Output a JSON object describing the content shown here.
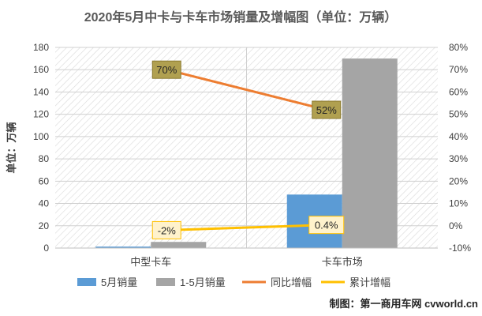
{
  "chart_data": {
    "type": "bar",
    "title": "2020年5月中卡与卡车市场销量及增幅图（单位：万辆）",
    "ylabel": "单位：万辆",
    "categories": [
      "中型卡车",
      "卡车市场"
    ],
    "ylim": [
      0,
      180
    ],
    "yticks": [
      0,
      20,
      40,
      60,
      80,
      100,
      120,
      140,
      160,
      180
    ],
    "y2lim": [
      -10,
      80
    ],
    "y2ticks": [
      "-10%",
      "0%",
      "10%",
      "20%",
      "30%",
      "40%",
      "50%",
      "60%",
      "70%",
      "80%"
    ],
    "y2tick_values": [
      -10,
      0,
      10,
      20,
      30,
      40,
      50,
      60,
      70,
      80
    ],
    "series": [
      {
        "name": "5月销量",
        "kind": "bar",
        "axis": "left",
        "color": "#5b9bd5",
        "values": [
          1.3,
          48
        ]
      },
      {
        "name": "1-5月销量",
        "kind": "bar",
        "axis": "left",
        "color": "#a5a5a5",
        "values": [
          5.5,
          170
        ]
      },
      {
        "name": "同比增幅",
        "kind": "line",
        "axis": "right",
        "color": "#ed7d31",
        "values": [
          70,
          52
        ],
        "labels": [
          "70%",
          "52%"
        ]
      },
      {
        "name": "累计增幅",
        "kind": "line",
        "axis": "right",
        "color": "#ffc000",
        "values": [
          -2,
          0.4
        ],
        "labels": [
          "-2%",
          "0.4%"
        ]
      }
    ],
    "legend_position": "bottom",
    "grid": true
  },
  "watermark": "制图：第一商用车网 cvworld.cn"
}
